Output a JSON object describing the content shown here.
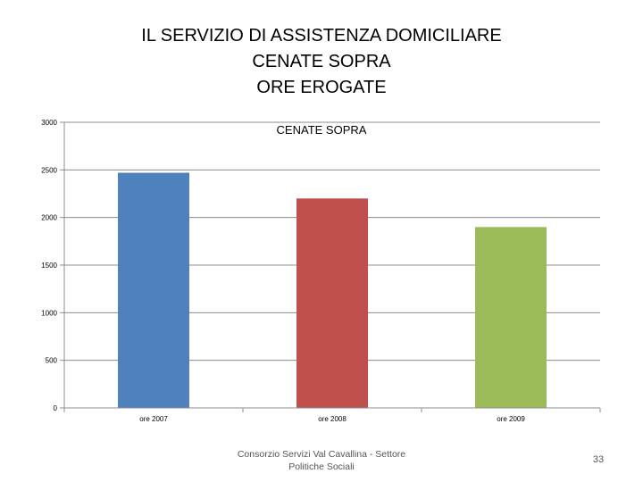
{
  "slide": {
    "title_lines": [
      "IL SERVIZIO DI ASSISTENZA DOMICILIARE",
      "CENATE SOPRA",
      "ORE EROGATE"
    ],
    "footer_lines": [
      "Consorzio Servizi Val Cavallina - Settore",
      "Politiche Sociali"
    ],
    "page_number": "33"
  },
  "chart_data": {
    "type": "bar",
    "title": "CENATE SOPRA",
    "categories": [
      "ore 2007",
      "ore 2008",
      "ore 2009"
    ],
    "values": [
      2470,
      2200,
      1900
    ],
    "colors": [
      "#4F81BD",
      "#C0504D",
      "#9BBB59"
    ],
    "ylim": [
      0,
      3000
    ],
    "yticks": [
      0,
      500,
      1000,
      1500,
      2000,
      2500,
      3000
    ],
    "grid": true,
    "legend": "none"
  }
}
